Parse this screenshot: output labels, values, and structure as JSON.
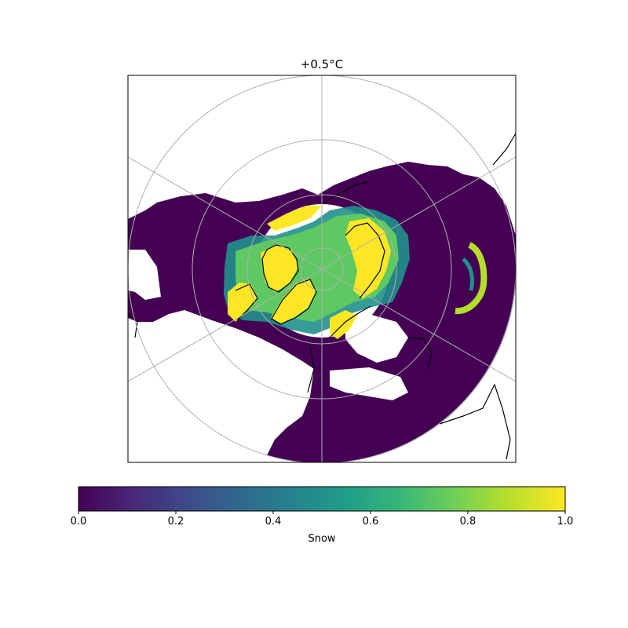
{
  "title": "+0.5°C",
  "colorbar": {
    "label": "Snow",
    "ticks": [
      "0.0",
      "0.2",
      "0.4",
      "0.6",
      "0.8",
      "1.0"
    ],
    "range": [
      0.0,
      1.0
    ],
    "colormap": "viridis",
    "colors": [
      "#440154",
      "#482878",
      "#3e4989",
      "#31688e",
      "#26828e",
      "#1f9e89",
      "#35b779",
      "#6ece58",
      "#b5de2b",
      "#fde725"
    ]
  },
  "map": {
    "projection": "north polar stereographic",
    "gridlines": true,
    "coastlines": true,
    "palette": {
      "low": "#440154",
      "mid_low": "#3b528b",
      "mid": "#21918c",
      "mid_high": "#5ec962",
      "high": "#fde725",
      "gridline": "#b0b0b0",
      "coast": "#000000"
    }
  }
}
